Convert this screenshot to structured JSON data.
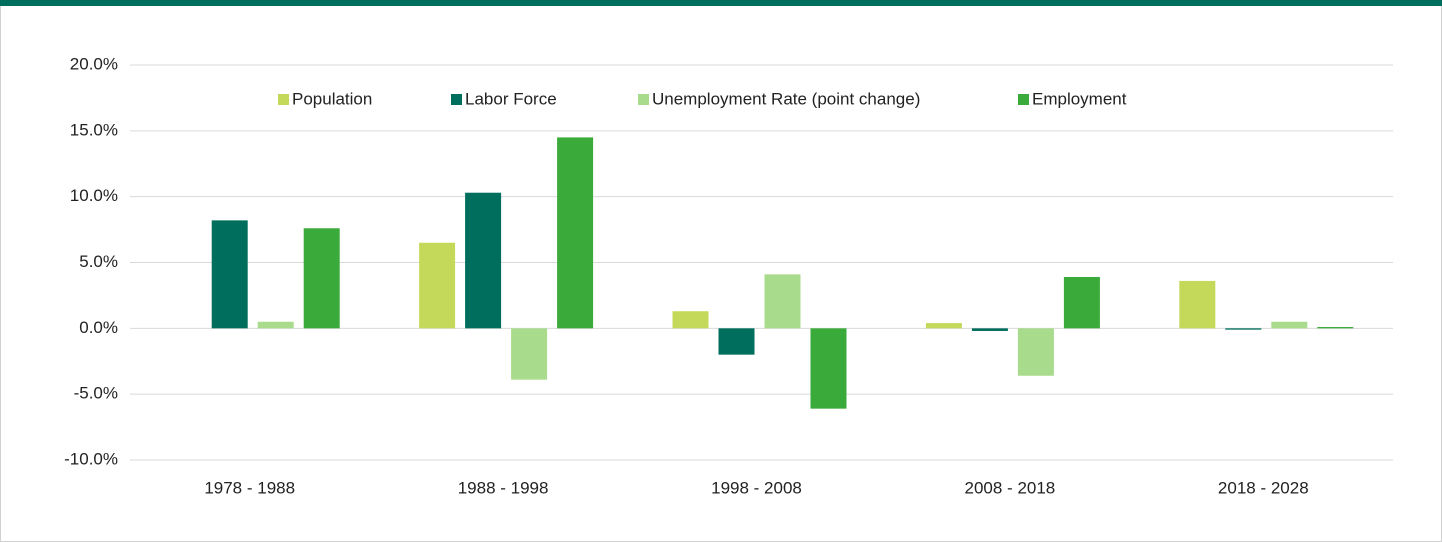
{
  "chart_data": {
    "type": "bar",
    "categories": [
      "1978 - 1988",
      "1988 - 1998",
      "1998 - 2008",
      "2008 - 2018",
      "2018 - 2028"
    ],
    "series": [
      {
        "name": "Population",
        "color": "#c4d95a",
        "values": [
          null,
          6.5,
          1.3,
          0.4,
          3.6
        ]
      },
      {
        "name": "Labor Force",
        "color": "#006e5d",
        "values": [
          8.2,
          10.3,
          -2.0,
          -0.2,
          -0.1
        ]
      },
      {
        "name": "Unemployment Rate (point change)",
        "color": "#a8dc8c",
        "values": [
          0.5,
          -3.9,
          4.1,
          -3.6,
          0.5
        ]
      },
      {
        "name": "Employment",
        "color": "#3aaa3a",
        "values": [
          7.6,
          14.5,
          -6.1,
          3.9,
          0.1
        ]
      }
    ],
    "ylim": [
      -10,
      20
    ],
    "yticks": [
      {
        "value": -10,
        "label": "-10.0%"
      },
      {
        "value": -5,
        "label": "-5.0%"
      },
      {
        "value": 0,
        "label": "0.0%"
      },
      {
        "value": 5,
        "label": "5.0%"
      },
      {
        "value": 10,
        "label": "10.0%"
      },
      {
        "value": 15,
        "label": "15.0%"
      },
      {
        "value": 20,
        "label": "20.0%"
      }
    ],
    "grid": true,
    "legend": "top"
  }
}
